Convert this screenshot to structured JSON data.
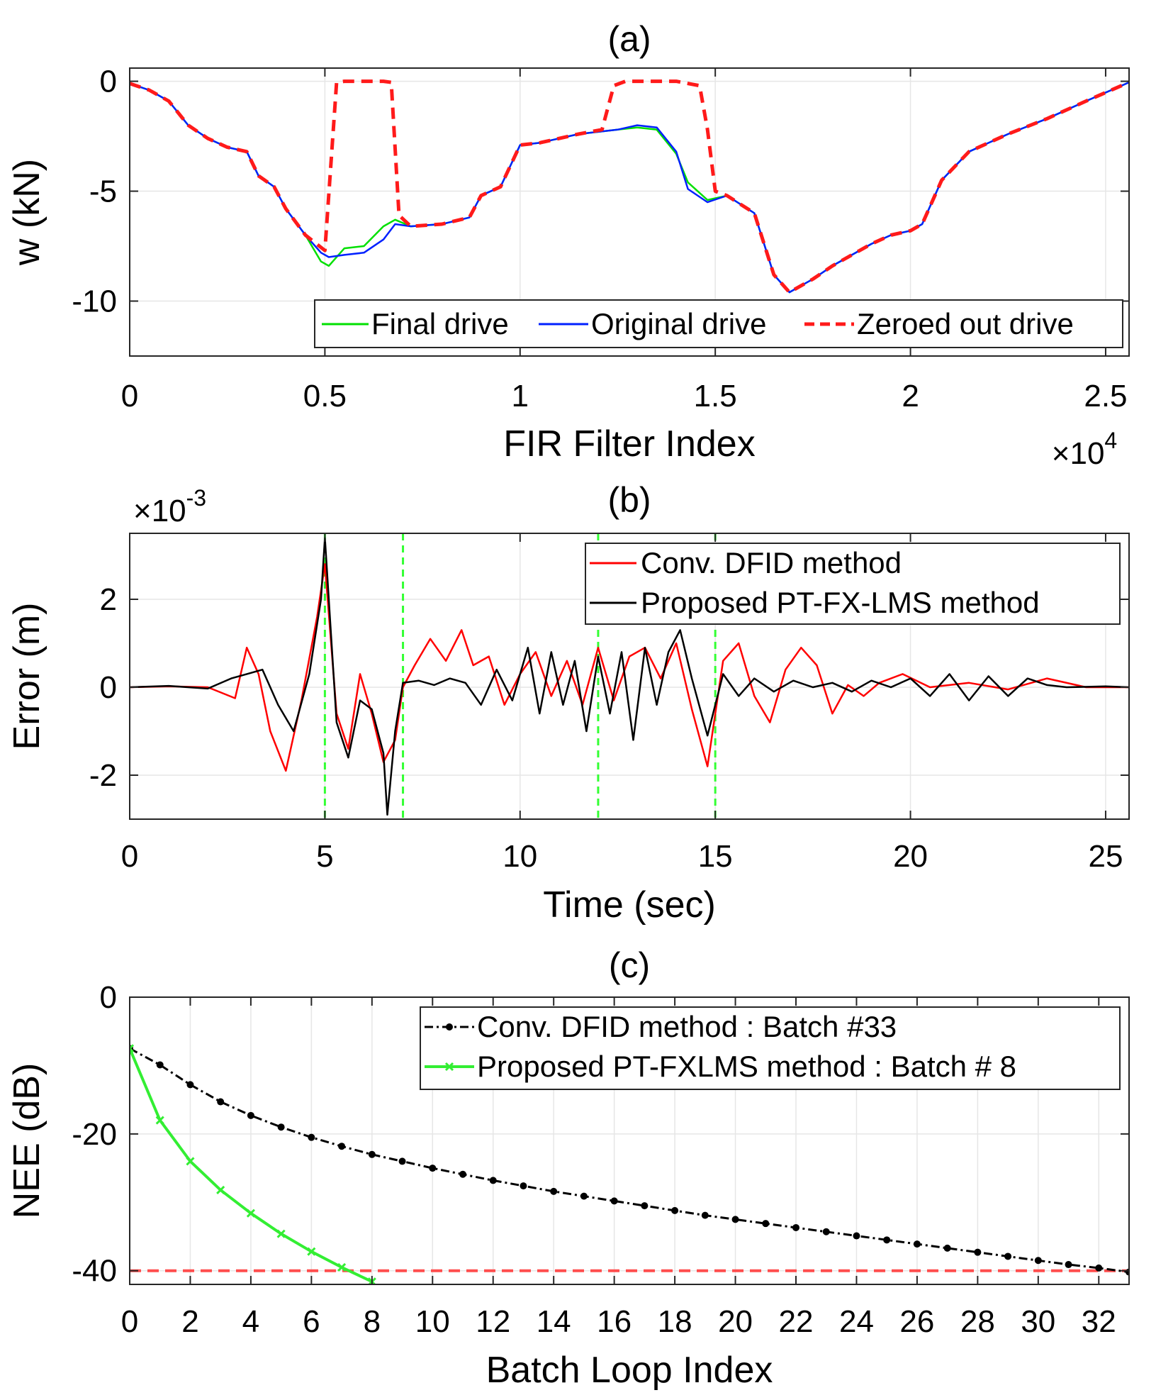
{
  "chart_data": [
    {
      "id": "a",
      "type": "line",
      "title": "(a)",
      "xlabel": "FIR Filter Index",
      "ylabel": "w (kN)",
      "x_multiplier_label": "×10",
      "x_multiplier_exp": "4",
      "xlim": [
        0,
        2.56
      ],
      "ylim": [
        -12.5,
        0.6
      ],
      "xticks": [
        0,
        0.5,
        1,
        1.5,
        2,
        2.5
      ],
      "xtick_labels": [
        "0",
        "0.5",
        "1",
        "1.5",
        "2",
        "2.5"
      ],
      "yticks": [
        0,
        -5,
        -10
      ],
      "ytick_labels": [
        "0",
        "-5",
        "-10"
      ],
      "grid": true,
      "legend_position": "bottom-right",
      "series": [
        {
          "name": "Final drive",
          "color": "#00e000",
          "style": "solid",
          "x": [
            0,
            0.05,
            0.1,
            0.15,
            0.2,
            0.25,
            0.3,
            0.33,
            0.37,
            0.4,
            0.45,
            0.49,
            0.51,
            0.55,
            0.6,
            0.65,
            0.68,
            0.72,
            0.8,
            0.87,
            0.9,
            0.95,
            1.0,
            1.05,
            1.1,
            1.15,
            1.2,
            1.25,
            1.3,
            1.35,
            1.4,
            1.43,
            1.48,
            1.53,
            1.6,
            1.65,
            1.69,
            1.72,
            1.75,
            1.8,
            1.85,
            1.9,
            1.95,
            2.0,
            2.03,
            2.08,
            2.15,
            2.25,
            2.35,
            2.45,
            2.56
          ],
          "values": [
            -0.1,
            -0.4,
            -0.9,
            -2.0,
            -2.6,
            -3.0,
            -3.2,
            -4.3,
            -4.8,
            -5.8,
            -7.0,
            -8.2,
            -8.4,
            -7.6,
            -7.5,
            -6.6,
            -6.3,
            -6.6,
            -6.5,
            -6.2,
            -5.2,
            -4.8,
            -2.9,
            -2.8,
            -2.6,
            -2.4,
            -2.3,
            -2.2,
            -2.1,
            -2.2,
            -3.3,
            -4.6,
            -5.4,
            -5.2,
            -6.0,
            -8.8,
            -9.6,
            -9.3,
            -9.0,
            -8.4,
            -7.9,
            -7.4,
            -7.0,
            -6.8,
            -6.5,
            -4.5,
            -3.2,
            -2.4,
            -1.7,
            -0.9,
            -0.05
          ]
        },
        {
          "name": "Original drive",
          "color": "#0020ff",
          "style": "solid",
          "x": [
            0,
            0.05,
            0.1,
            0.15,
            0.2,
            0.25,
            0.3,
            0.33,
            0.37,
            0.4,
            0.45,
            0.49,
            0.51,
            0.55,
            0.6,
            0.65,
            0.68,
            0.72,
            0.8,
            0.87,
            0.9,
            0.95,
            1.0,
            1.05,
            1.1,
            1.15,
            1.2,
            1.25,
            1.3,
            1.35,
            1.4,
            1.43,
            1.48,
            1.53,
            1.6,
            1.65,
            1.69,
            1.72,
            1.75,
            1.8,
            1.85,
            1.9,
            1.95,
            2.0,
            2.03,
            2.08,
            2.15,
            2.25,
            2.35,
            2.45,
            2.56
          ],
          "values": [
            -0.1,
            -0.4,
            -0.9,
            -2.0,
            -2.6,
            -3.0,
            -3.2,
            -4.3,
            -4.8,
            -5.8,
            -7.0,
            -7.8,
            -8.0,
            -7.9,
            -7.8,
            -7.2,
            -6.5,
            -6.6,
            -6.5,
            -6.2,
            -5.2,
            -4.8,
            -2.9,
            -2.8,
            -2.6,
            -2.4,
            -2.3,
            -2.2,
            -2.0,
            -2.1,
            -3.2,
            -4.9,
            -5.5,
            -5.2,
            -6.0,
            -8.8,
            -9.6,
            -9.3,
            -9.0,
            -8.4,
            -7.9,
            -7.4,
            -7.0,
            -6.8,
            -6.5,
            -4.5,
            -3.2,
            -2.4,
            -1.7,
            -0.9,
            -0.05
          ]
        },
        {
          "name": "Zeroed out drive",
          "color": "#ff1a1a",
          "style": "dashed",
          "x": [
            0,
            0.05,
            0.1,
            0.15,
            0.2,
            0.25,
            0.3,
            0.33,
            0.37,
            0.4,
            0.45,
            0.5,
            0.53,
            0.55,
            0.6,
            0.65,
            0.67,
            0.69,
            0.72,
            0.8,
            0.87,
            0.9,
            0.95,
            1.0,
            1.05,
            1.1,
            1.15,
            1.21,
            1.24,
            1.27,
            1.3,
            1.35,
            1.4,
            1.46,
            1.48,
            1.5,
            1.53,
            1.6,
            1.65,
            1.69,
            1.72,
            1.75,
            1.8,
            1.85,
            1.9,
            1.95,
            2.0,
            2.03,
            2.08,
            2.15,
            2.25,
            2.35,
            2.45,
            2.56
          ],
          "values": [
            -0.1,
            -0.4,
            -0.9,
            -2.0,
            -2.6,
            -3.0,
            -3.2,
            -4.3,
            -4.8,
            -5.8,
            -7.0,
            -7.7,
            -0.05,
            0.0,
            0.0,
            0.0,
            -0.05,
            -6.1,
            -6.6,
            -6.5,
            -6.2,
            -5.2,
            -4.8,
            -2.9,
            -2.8,
            -2.6,
            -2.4,
            -2.2,
            -0.2,
            0.0,
            0.0,
            0.0,
            0.0,
            -0.2,
            -2.2,
            -5.0,
            -5.2,
            -6.0,
            -8.8,
            -9.6,
            -9.3,
            -9.0,
            -8.4,
            -7.9,
            -7.4,
            -7.0,
            -6.8,
            -6.5,
            -4.5,
            -3.2,
            -2.4,
            -1.7,
            -0.9,
            -0.05
          ]
        }
      ]
    },
    {
      "id": "b",
      "type": "line",
      "title": "(b)",
      "xlabel": "Time (sec)",
      "ylabel": "Error (m)",
      "y_multiplier_label": "×10",
      "y_multiplier_exp": "-3",
      "xlim": [
        0,
        25.6
      ],
      "ylim": [
        -3,
        3.5
      ],
      "xticks": [
        0,
        5,
        10,
        15,
        20,
        25
      ],
      "xtick_labels": [
        "0",
        "5",
        "10",
        "15",
        "20",
        "25"
      ],
      "yticks": [
        2,
        0,
        -2
      ],
      "ytick_labels": [
        "2",
        "0",
        "-2"
      ],
      "grid": true,
      "legend_position": "top-right",
      "vlines": [
        5,
        7,
        12,
        15
      ],
      "vline_color": "#33ff33",
      "series": [
        {
          "name": "Conv. DFID method",
          "color": "#ff0000",
          "style": "solid",
          "x": [
            0,
            1,
            2,
            2.7,
            3.0,
            3.3,
            3.6,
            4.0,
            4.4,
            4.8,
            5.0,
            5.3,
            5.6,
            5.9,
            6.2,
            6.5,
            6.8,
            7.0,
            7.3,
            7.7,
            8.1,
            8.5,
            8.8,
            9.2,
            9.6,
            10.0,
            10.4,
            10.8,
            11.2,
            11.6,
            12.0,
            12.4,
            12.8,
            13.2,
            13.6,
            14.0,
            14.4,
            14.8,
            15.2,
            15.6,
            16.0,
            16.4,
            16.8,
            17.2,
            17.6,
            18.0,
            18.4,
            18.8,
            19.2,
            19.8,
            20.5,
            21.5,
            22.5,
            23.5,
            24.5,
            25.6
          ],
          "values": [
            0,
            0.02,
            0.0,
            -0.25,
            0.9,
            0.3,
            -1.0,
            -1.9,
            -0.3,
            1.6,
            2.8,
            -0.6,
            -1.4,
            0.3,
            -0.6,
            -1.7,
            -1.2,
            0.0,
            0.5,
            1.1,
            0.6,
            1.3,
            0.5,
            0.7,
            -0.4,
            0.3,
            0.8,
            -0.2,
            0.6,
            -0.4,
            0.9,
            -0.3,
            0.7,
            0.9,
            0.2,
            1.0,
            -0.5,
            -1.8,
            0.6,
            1.0,
            -0.2,
            -0.8,
            0.4,
            0.9,
            0.5,
            -0.6,
            0.05,
            -0.2,
            0.1,
            0.3,
            0.0,
            0.1,
            -0.05,
            0.2,
            0.0,
            0.0
          ]
        },
        {
          "name": "Proposed PT-FX-LMS method",
          "color": "#000000",
          "style": "solid",
          "x": [
            0,
            1,
            2,
            2.6,
            3.0,
            3.4,
            3.8,
            4.2,
            4.6,
            4.9,
            5.0,
            5.3,
            5.6,
            5.9,
            6.2,
            6.5,
            6.6,
            6.8,
            7.0,
            7.4,
            7.8,
            8.2,
            8.6,
            9.0,
            9.4,
            9.8,
            10.2,
            10.5,
            10.8,
            11.1,
            11.4,
            11.7,
            12.0,
            12.3,
            12.6,
            12.9,
            13.2,
            13.5,
            13.8,
            14.1,
            14.4,
            14.8,
            15.2,
            15.6,
            16.0,
            16.5,
            17.0,
            17.5,
            18.0,
            18.5,
            19.0,
            19.5,
            20.0,
            20.5,
            21.0,
            21.5,
            22.0,
            22.5,
            23.0,
            23.5,
            24.0,
            25.0,
            25.6
          ],
          "values": [
            0,
            0.03,
            -0.03,
            0.2,
            0.3,
            0.4,
            -0.4,
            -1.0,
            0.3,
            2.0,
            3.4,
            -0.8,
            -1.6,
            -0.3,
            -0.5,
            -1.5,
            -2.9,
            -1.0,
            0.1,
            0.15,
            0.05,
            0.2,
            0.1,
            -0.4,
            0.4,
            -0.3,
            0.9,
            -0.6,
            0.8,
            -0.4,
            0.6,
            -1.0,
            0.7,
            -0.6,
            0.8,
            -1.2,
            0.9,
            -0.4,
            0.8,
            1.3,
            0.2,
            -1.1,
            0.3,
            -0.2,
            0.2,
            -0.1,
            0.15,
            0.0,
            0.1,
            -0.1,
            0.15,
            0.0,
            0.2,
            -0.2,
            0.3,
            -0.3,
            0.25,
            -0.2,
            0.2,
            0.05,
            0.0,
            0.02,
            0.0
          ]
        }
      ]
    },
    {
      "id": "c",
      "type": "line",
      "title": "(c)",
      "xlabel": "Batch Loop Index",
      "ylabel": "NEE (dB)",
      "xlim": [
        0,
        33
      ],
      "ylim": [
        -42,
        0
      ],
      "xticks": [
        0,
        2,
        4,
        6,
        8,
        10,
        12,
        14,
        16,
        18,
        20,
        22,
        24,
        26,
        28,
        30,
        32
      ],
      "xtick_labels": [
        "0",
        "2",
        "4",
        "6",
        "8",
        "10",
        "12",
        "14",
        "16",
        "18",
        "20",
        "22",
        "24",
        "26",
        "28",
        "30",
        "32"
      ],
      "yticks": [
        0,
        -20,
        -40
      ],
      "ytick_labels": [
        "0",
        "-20",
        "-40"
      ],
      "grid": true,
      "legend_position": "top-right",
      "hline": -40,
      "hline_color": "#ff4d4d",
      "series": [
        {
          "name": "Conv. DFID method : Batch #33",
          "color": "#000000",
          "style": "dashdot",
          "marker": "dot",
          "x": [
            0,
            1,
            2,
            3,
            4,
            5,
            6,
            7,
            8,
            9,
            10,
            11,
            12,
            13,
            14,
            15,
            16,
            17,
            18,
            19,
            20,
            21,
            22,
            23,
            24,
            25,
            26,
            27,
            28,
            29,
            30,
            31,
            32,
            33
          ],
          "values": [
            -7.5,
            -9.9,
            -12.8,
            -15.3,
            -17.3,
            -19.0,
            -20.5,
            -21.8,
            -23.0,
            -24.0,
            -25.0,
            -25.9,
            -26.8,
            -27.6,
            -28.4,
            -29.1,
            -29.8,
            -30.5,
            -31.2,
            -31.9,
            -32.5,
            -33.1,
            -33.7,
            -34.3,
            -34.9,
            -35.5,
            -36.1,
            -36.7,
            -37.3,
            -37.9,
            -38.5,
            -39.1,
            -39.6,
            -40.2
          ]
        },
        {
          "name": "Proposed PT-FXLMS method : Batch # 8",
          "color": "#33ee33",
          "style": "solid",
          "marker": "x",
          "x": [
            0,
            1,
            2,
            3,
            4,
            5,
            6,
            7,
            8
          ],
          "values": [
            -7.5,
            -18.0,
            -24.0,
            -28.2,
            -31.6,
            -34.6,
            -37.2,
            -39.5,
            -41.6
          ]
        }
      ]
    }
  ]
}
